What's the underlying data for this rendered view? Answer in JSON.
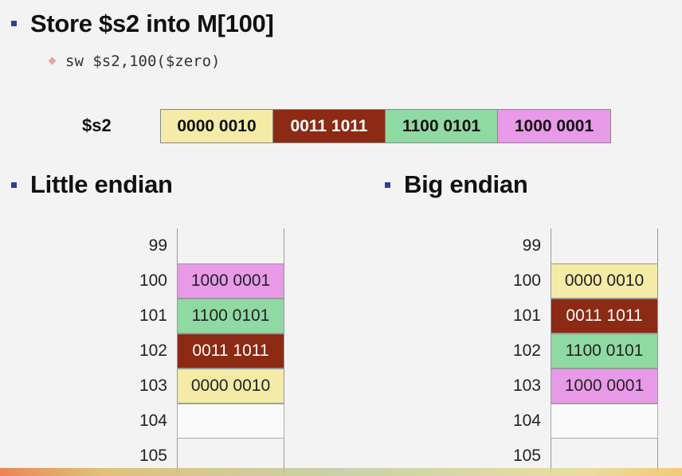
{
  "title": "Store $s2 into M[100]",
  "instruction": "sw $s2,100($zero)",
  "register": {
    "label": "$s2",
    "bytes": [
      {
        "value": "0000 0010",
        "color": "#f3eba6",
        "text_color": "#111"
      },
      {
        "value": "0011 1011",
        "color": "#8c2a14",
        "text_color": "#ffffff"
      },
      {
        "value": "1100 0101",
        "color": "#8fd9a2",
        "text_color": "#111"
      },
      {
        "value": "1000 0001",
        "color": "#e89ae8",
        "text_color": "#111"
      }
    ]
  },
  "little_endian": {
    "heading": "Little endian",
    "rows": [
      {
        "addr": "99",
        "value": "",
        "color": ""
      },
      {
        "addr": "100",
        "value": "1000 0001",
        "color": "#e89ae8",
        "text_color": "#222"
      },
      {
        "addr": "101",
        "value": "1100 0101",
        "color": "#8fd9a2",
        "text_color": "#222"
      },
      {
        "addr": "102",
        "value": "0011 1011",
        "color": "#8c2a14",
        "text_color": "#ffffff"
      },
      {
        "addr": "103",
        "value": "0000 0010",
        "color": "#f3eba6",
        "text_color": "#222"
      },
      {
        "addr": "104",
        "value": "",
        "color": "#fafafa"
      },
      {
        "addr": "105",
        "value": "",
        "color": ""
      }
    ]
  },
  "big_endian": {
    "heading": "Big endian",
    "rows": [
      {
        "addr": "99",
        "value": "",
        "color": ""
      },
      {
        "addr": "100",
        "value": "0000 0010",
        "color": "#f3eba6",
        "text_color": "#222"
      },
      {
        "addr": "101",
        "value": "0011 1011",
        "color": "#8c2a14",
        "text_color": "#ffffff"
      },
      {
        "addr": "102",
        "value": "1100 0101",
        "color": "#8fd9a2",
        "text_color": "#222"
      },
      {
        "addr": "103",
        "value": "1000 0001",
        "color": "#e89ae8",
        "text_color": "#222"
      },
      {
        "addr": "104",
        "value": "",
        "color": "#fafafa"
      },
      {
        "addr": "105",
        "value": "",
        "color": ""
      }
    ]
  }
}
